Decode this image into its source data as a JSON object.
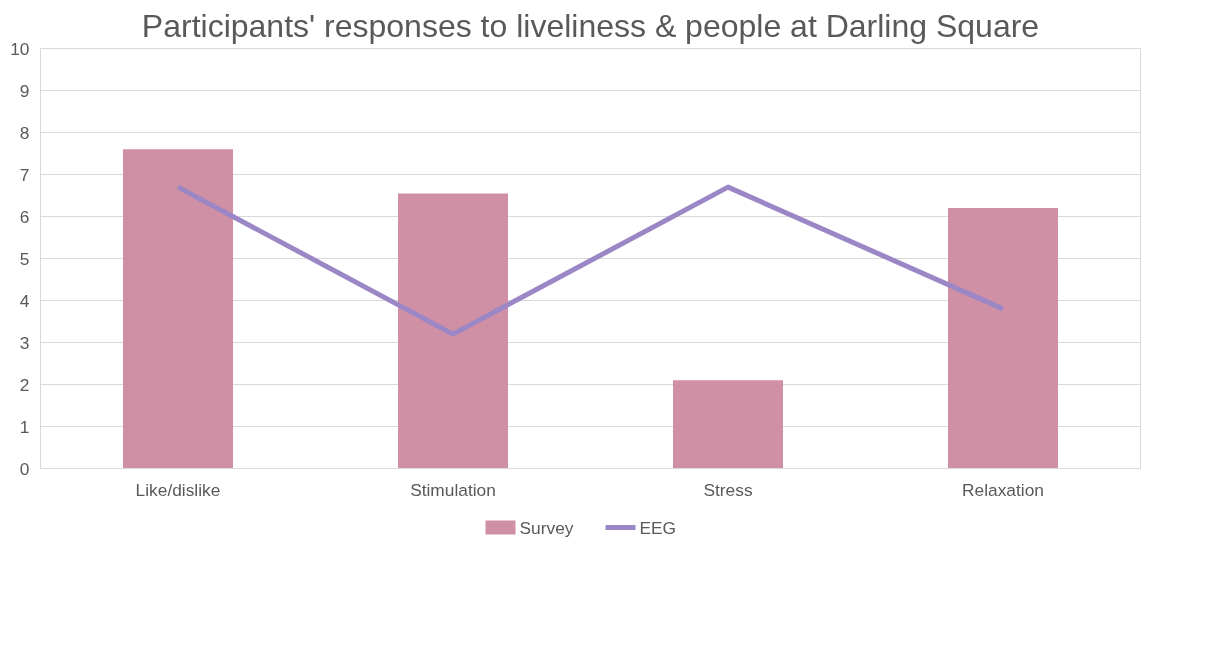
{
  "chart_data": {
    "type": "bar",
    "title": "Participants' responses to liveliness & people at Darling Square",
    "categories": [
      "Like/dislike",
      "Stimulation",
      "Stress",
      "Relaxation"
    ],
    "series": [
      {
        "name": "Survey",
        "type": "bar",
        "color": "#cf8fa5",
        "values": [
          7.6,
          6.55,
          2.1,
          6.2
        ]
      },
      {
        "name": "EEG",
        "type": "line",
        "color": "#9b87c6",
        "values": [
          6.7,
          3.2,
          6.7,
          3.8
        ]
      }
    ],
    "ylim": [
      0,
      10
    ],
    "yticks": [
      0,
      1,
      2,
      3,
      4,
      5,
      6,
      7,
      8,
      9,
      10
    ],
    "grid": "y",
    "legend": "bottom"
  }
}
